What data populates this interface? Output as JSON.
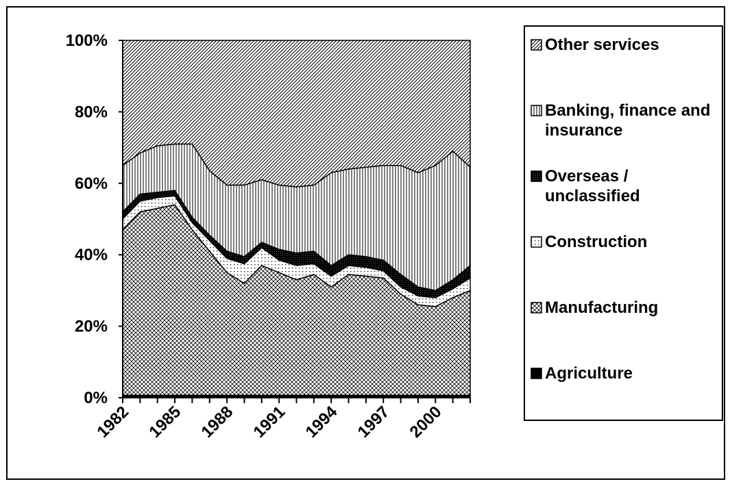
{
  "chart_data": {
    "type": "stacked-area-100",
    "categories": [
      "1982",
      null,
      null,
      "1985",
      null,
      null,
      "1988",
      null,
      null,
      "1991",
      null,
      null,
      "1994",
      null,
      null,
      "1997",
      null,
      null,
      "2000",
      null,
      null
    ],
    "series": [
      {
        "name": "Agriculture",
        "color": "#000000",
        "pattern": "solid",
        "values": [
          0.7,
          0.7,
          0.7,
          0.7,
          0.7,
          0.7,
          0.7,
          0.7,
          0.7,
          0.7,
          0.7,
          0.7,
          0.7,
          0.7,
          0.7,
          0.7,
          0.7,
          0.7,
          0.7,
          0.7,
          0.7
        ]
      },
      {
        "name": "Manufacturing",
        "color": "#000000",
        "pattern": "crosshatch",
        "values": [
          46.3,
          51.3,
          52.3,
          53.3,
          46.3,
          40.3,
          34.3,
          31.3,
          36.3,
          34.3,
          32.3,
          33.8,
          30.3,
          33.8,
          33.3,
          32.8,
          28.3,
          25.3,
          24.8,
          27.3,
          29.3
        ]
      },
      {
        "name": "Construction",
        "color": "#000000",
        "pattern": "dots",
        "values": [
          3,
          3,
          3,
          2.5,
          2,
          3,
          4,
          5.5,
          5,
          3.5,
          4,
          3,
          3,
          2.5,
          2.5,
          2,
          2,
          2.5,
          2.5,
          2.5,
          3.5
        ]
      },
      {
        "name": "Overseas / unclassified",
        "color": "#000000",
        "pattern": "dense",
        "values": [
          2,
          2,
          1.5,
          1.5,
          1.5,
          1.5,
          2,
          2,
          1.5,
          3,
          3.5,
          3.5,
          3,
          3,
          3,
          3,
          3.5,
          2.5,
          2,
          2.5,
          3.5
        ]
      },
      {
        "name": "Banking, finance and insurance",
        "color": "#000000",
        "pattern": "vertical",
        "values": [
          13,
          11.5,
          13,
          13,
          20.5,
          18,
          18.5,
          20,
          17.5,
          18,
          18.5,
          18.5,
          26,
          24,
          25,
          26.5,
          30.5,
          32,
          35,
          36,
          27.5
        ]
      },
      {
        "name": "Other services",
        "color": "#000000",
        "pattern": "diagonal",
        "values": [
          35,
          31.5,
          29.5,
          29,
          29,
          36.5,
          40.5,
          40.5,
          39,
          40.5,
          41,
          40.5,
          37,
          36,
          35.5,
          35,
          35,
          37,
          35,
          31,
          35.5
        ]
      }
    ],
    "ylim": [
      0,
      100
    ],
    "yticks": [
      {
        "value": 0,
        "label": "0%"
      },
      {
        "value": 20,
        "label": "20%"
      },
      {
        "value": 40,
        "label": "40%"
      },
      {
        "value": 60,
        "label": "60%"
      },
      {
        "value": 80,
        "label": "80%"
      },
      {
        "value": 100,
        "label": "100%"
      }
    ],
    "legend": "right"
  }
}
